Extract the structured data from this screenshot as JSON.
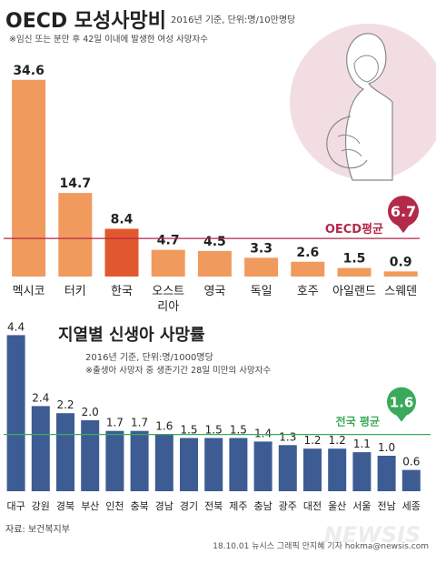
{
  "chart_data": [
    {
      "type": "bar",
      "title": "OECD 모성사망비",
      "subtitle": "2016년 기준, 단위:명/10만명당",
      "note": "※임신 또는 분만 후 42일 이내에 발생한 여성 사망자수",
      "categories": [
        "멕시코",
        "터키",
        "한국",
        "오스트리아",
        "영국",
        "독일",
        "호주",
        "아일랜드",
        "스웨덴"
      ],
      "values": [
        34.6,
        14.7,
        8.4,
        4.7,
        4.5,
        3.3,
        2.6,
        1.5,
        0.9
      ],
      "value_labels": [
        "34.6",
        "14.7",
        "8.4",
        "4.7",
        "4.5",
        "3.3",
        "2.6",
        "1.5",
        "0.9"
      ],
      "highlight": "한국",
      "reference_line": {
        "label": "OECD평균",
        "value": 6.7,
        "value_label": "6.7"
      },
      "colors": {
        "bar": "#f09a5e",
        "highlight": "#e2582e",
        "line": "#b3294a",
        "marker": "#b3294a"
      }
    },
    {
      "type": "bar",
      "title": "지열별 신생아 사망률",
      "subtitle": "2016년 기준, 단위:명/1000명당",
      "note": "※출생아 사망자 중 생존기간 28일 미만의 사망자수",
      "categories": [
        "대구",
        "강원",
        "경북",
        "부산",
        "인천",
        "충북",
        "경남",
        "경기",
        "전북",
        "제주",
        "충남",
        "광주",
        "대전",
        "울산",
        "서울",
        "전남",
        "세종"
      ],
      "values": [
        4.4,
        2.4,
        2.2,
        2.0,
        1.7,
        1.7,
        1.6,
        1.5,
        1.5,
        1.5,
        1.4,
        1.3,
        1.2,
        1.2,
        1.1,
        1.0,
        0.6
      ],
      "value_labels": [
        "4.4",
        "2.4",
        "2.2",
        "2.0",
        "1.7",
        "1.7",
        "1.6",
        "1.5",
        "1.5",
        "1.5",
        "1.4",
        "1.3",
        "1.2",
        "1.2",
        "1.1",
        "1.0",
        "0.6"
      ],
      "reference_line": {
        "label": "전국 평균",
        "value": 1.6,
        "value_label": "1.6"
      },
      "colors": {
        "bar": "#3e5c94",
        "line": "#3aaa5a",
        "marker": "#3aaa5a"
      }
    }
  ],
  "footer": {
    "source": "자료: 보건복지부",
    "credit": "18.10.01 뉴시스 그래픽 안지혜 기자 hokma@newsis.com",
    "watermark": "NEWSIS"
  },
  "illustration": {
    "icon": "pregnant-woman-icon"
  }
}
